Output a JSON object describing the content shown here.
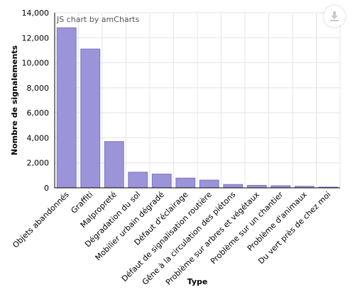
{
  "credit": "JS chart by amCharts",
  "export_icon": "download-icon",
  "chart_data": {
    "type": "bar",
    "title": "",
    "xlabel": "Type",
    "ylabel": "Nombre de signalements",
    "ylim": [
      0,
      14000
    ],
    "yticks": [
      "0",
      "2,000",
      "4,000",
      "6,000",
      "8,000",
      "10,000",
      "12,000",
      "14,000"
    ],
    "grid": true,
    "bar_color": "#9b94d8",
    "bar_stroke": "#7b73c6",
    "categories": [
      "Objets abandonnés",
      "Graffiti",
      "Malpropreté",
      "Dégradation du sol",
      "Mobilier urbain dégradé",
      "Défaut d'éclairage",
      "Défaut de signalisation routière",
      "Gêne à la circulation des piétons",
      "Problème sur arbres et végétaux",
      "Problème sur un chantier",
      "Problème d'animaux",
      "Du vert près de chez moi"
    ],
    "values": [
      12800,
      11100,
      3700,
      1250,
      1100,
      780,
      620,
      270,
      200,
      170,
      120,
      10
    ]
  }
}
